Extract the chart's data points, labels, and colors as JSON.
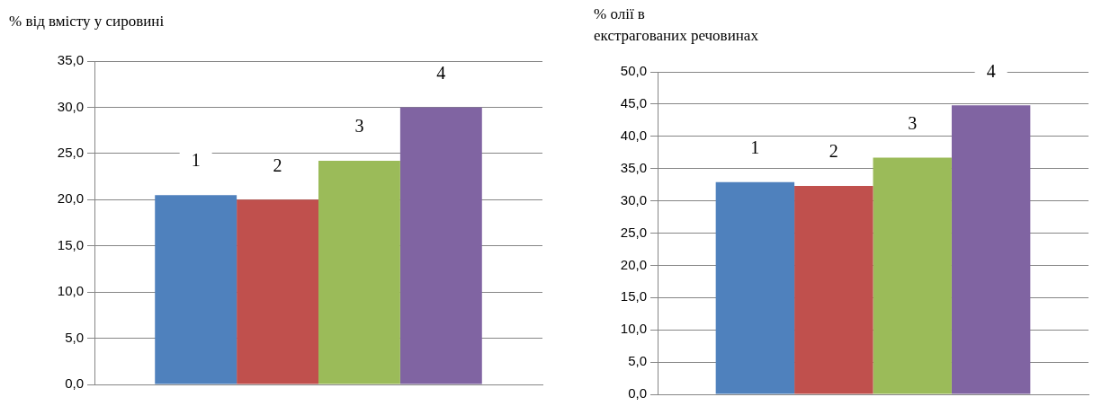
{
  "chart_data": [
    {
      "type": "bar",
      "ylabel": "% від вмісту у сировині",
      "categories": [
        null
      ],
      "series": [
        {
          "name": "1",
          "color": "#4f81bd",
          "values": [
            20.5
          ]
        },
        {
          "name": "2",
          "color": "#c0504d",
          "values": [
            20.0
          ]
        },
        {
          "name": "3",
          "color": "#9bbb59",
          "values": [
            24.2
          ]
        },
        {
          "name": "4",
          "color": "#8064a2",
          "values": [
            30.0
          ]
        }
      ],
      "ylim": [
        0,
        35
      ],
      "yticks": [
        {
          "value": 0,
          "label": "0,0"
        },
        {
          "value": 5,
          "label": "5,0"
        },
        {
          "value": 10,
          "label": "10,0"
        },
        {
          "value": 15,
          "label": "15,0"
        },
        {
          "value": 20,
          "label": "20,0"
        },
        {
          "value": 25,
          "label": "25,0"
        },
        {
          "value": 30,
          "label": "30,0"
        },
        {
          "value": 35,
          "label": "35,0"
        }
      ],
      "grid": "y",
      "legend": false,
      "tick_labels": "y"
    },
    {
      "type": "bar",
      "ylabel": "% олії в\nекстрагованих речовинах",
      "categories": [
        null
      ],
      "series": [
        {
          "name": "1",
          "color": "#4f81bd",
          "values": [
            32.9
          ]
        },
        {
          "name": "2",
          "color": "#c0504d",
          "values": [
            32.3
          ]
        },
        {
          "name": "3",
          "color": "#9bbb59",
          "values": [
            36.7
          ]
        },
        {
          "name": "4",
          "color": "#8064a2",
          "values": [
            44.8
          ]
        }
      ],
      "ylim": [
        0,
        50
      ],
      "yticks": [
        {
          "value": 0,
          "label": "0,0"
        },
        {
          "value": 5,
          "label": "5,0"
        },
        {
          "value": 10,
          "label": "10,0"
        },
        {
          "value": 15,
          "label": "15,0"
        },
        {
          "value": 20,
          "label": "20,0"
        },
        {
          "value": 25,
          "label": "25,0"
        },
        {
          "value": 30,
          "label": "30,0"
        },
        {
          "value": 35,
          "label": "35,0"
        },
        {
          "value": 40,
          "label": "40,0"
        },
        {
          "value": 45,
          "label": "45,0"
        },
        {
          "value": 50,
          "label": "50,0"
        }
      ],
      "grid": "y",
      "legend": false,
      "tick_labels": "y"
    }
  ]
}
